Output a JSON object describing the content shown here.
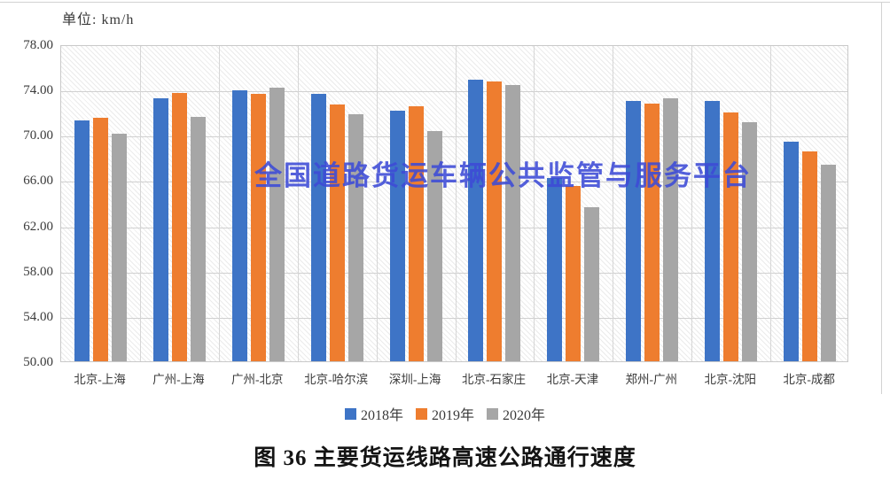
{
  "figure": {
    "unit_label": "单位: km/h",
    "watermark": "全国道路货运车辆公共监管与服务平台",
    "caption": "图 36 主要货运线路高速公路通行速度"
  },
  "chart_data": {
    "type": "bar",
    "title": "图 36 主要货运线路高速公路通行速度",
    "unit": "km/h",
    "categories": [
      "北京-上海",
      "广州-上海",
      "广州-北京",
      "北京-哈尔滨",
      "深圳-上海",
      "北京-石家庄",
      "北京-天津",
      "郑州-广州",
      "北京-沈阳",
      "北京-成都"
    ],
    "series": [
      {
        "name": "2018年",
        "color": "#3e74c6",
        "values": [
          71.3,
          73.2,
          73.9,
          73.6,
          72.1,
          74.9,
          66.2,
          73.0,
          73.0,
          69.4
        ]
      },
      {
        "name": "2019年",
        "color": "#ee7d2f",
        "values": [
          71.5,
          73.7,
          73.6,
          72.7,
          72.5,
          74.7,
          65.5,
          72.8,
          72.0,
          68.5
        ]
      },
      {
        "name": "2020年",
        "color": "#a6a6a6",
        "values": [
          70.1,
          71.6,
          74.2,
          71.8,
          70.3,
          74.4,
          63.6,
          73.2,
          71.1,
          67.4
        ]
      }
    ],
    "ylim": [
      50,
      78
    ],
    "ytick_step": 4,
    "ytick_labels": [
      "78.00",
      "74.00",
      "70.00",
      "66.00",
      "62.00",
      "58.00",
      "54.00",
      "50.00"
    ],
    "grid": true,
    "hatch_background": true,
    "legend_position": "bottom"
  }
}
